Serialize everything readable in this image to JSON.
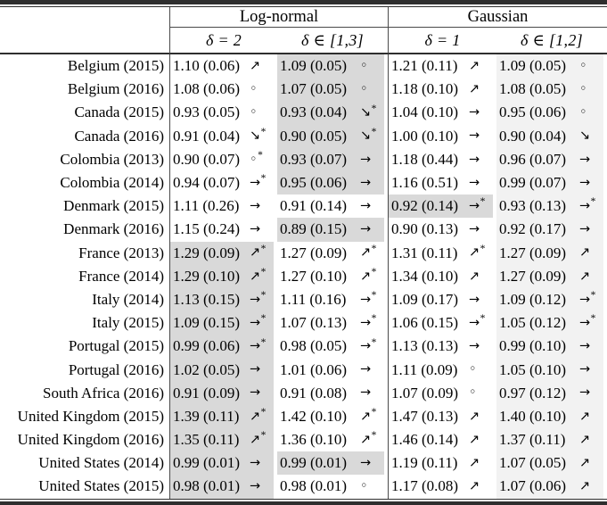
{
  "colors": {
    "highlight_cell": "#d9d9d9",
    "column_tint": "#f2f2f2",
    "rule": "#2e2e2e"
  },
  "table": {
    "star_char": "*",
    "groups": [
      {
        "label": "Log-normal"
      },
      {
        "label": "Gaussian"
      }
    ],
    "subheaders": [
      "δ = 2",
      "δ ∈ [1,3]",
      "δ = 1",
      "δ ∈ [1,2]"
    ],
    "trend_legend": {
      "↗": "increase",
      "→": "stable",
      "↘": "decrease",
      "◦": "none"
    },
    "rows": [
      {
        "label": "Belgium (2015)",
        "cells": [
          {
            "value": "1.10 (0.06)",
            "trend": "↗",
            "star": false,
            "highlight": false
          },
          {
            "value": "1.09 (0.05)",
            "trend": "◦",
            "star": false,
            "highlight": true
          },
          {
            "value": "1.21 (0.11)",
            "trend": "↗",
            "star": false,
            "highlight": false
          },
          {
            "value": "1.09 (0.05)",
            "trend": "◦",
            "star": false,
            "highlight": false
          }
        ]
      },
      {
        "label": "Belgium (2016)",
        "cells": [
          {
            "value": "1.08 (0.06)",
            "trend": "◦",
            "star": false,
            "highlight": false
          },
          {
            "value": "1.07 (0.05)",
            "trend": "◦",
            "star": false,
            "highlight": true
          },
          {
            "value": "1.18 (0.10)",
            "trend": "↗",
            "star": false,
            "highlight": false
          },
          {
            "value": "1.08 (0.05)",
            "trend": "◦",
            "star": false,
            "highlight": false
          }
        ]
      },
      {
        "label": "Canada (2015)",
        "cells": [
          {
            "value": "0.93 (0.05)",
            "trend": "◦",
            "star": false,
            "highlight": false
          },
          {
            "value": "0.93 (0.04)",
            "trend": "↘",
            "star": true,
            "highlight": true
          },
          {
            "value": "1.04 (0.10)",
            "trend": "→",
            "star": false,
            "highlight": false
          },
          {
            "value": "0.95 (0.06)",
            "trend": "◦",
            "star": false,
            "highlight": false
          }
        ]
      },
      {
        "label": "Canada (2016)",
        "cells": [
          {
            "value": "0.91 (0.04)",
            "trend": "↘",
            "star": true,
            "highlight": false
          },
          {
            "value": "0.90 (0.05)",
            "trend": "↘",
            "star": true,
            "highlight": true
          },
          {
            "value": "1.00 (0.10)",
            "trend": "→",
            "star": false,
            "highlight": false
          },
          {
            "value": "0.90 (0.04)",
            "trend": "↘",
            "star": false,
            "highlight": false
          }
        ]
      },
      {
        "label": "Colombia (2013)",
        "cells": [
          {
            "value": "0.90 (0.07)",
            "trend": "◦",
            "star": true,
            "highlight": false
          },
          {
            "value": "0.93 (0.07)",
            "trend": "→",
            "star": false,
            "highlight": true
          },
          {
            "value": "1.18 (0.44)",
            "trend": "→",
            "star": false,
            "highlight": false
          },
          {
            "value": "0.96 (0.07)",
            "trend": "→",
            "star": false,
            "highlight": false
          }
        ]
      },
      {
        "label": "Colombia (2014)",
        "cells": [
          {
            "value": "0.94 (0.07)",
            "trend": "→",
            "star": true,
            "highlight": false
          },
          {
            "value": "0.95 (0.06)",
            "trend": "→",
            "star": false,
            "highlight": true
          },
          {
            "value": "1.16 (0.51)",
            "trend": "→",
            "star": false,
            "highlight": false
          },
          {
            "value": "0.99 (0.07)",
            "trend": "→",
            "star": false,
            "highlight": false
          }
        ]
      },
      {
        "label": "Denmark (2015)",
        "cells": [
          {
            "value": "1.11 (0.26)",
            "trend": "→",
            "star": false,
            "highlight": false
          },
          {
            "value": "0.91 (0.14)",
            "trend": "→",
            "star": false,
            "highlight": false
          },
          {
            "value": "0.92 (0.14)",
            "trend": "→",
            "star": true,
            "highlight": true
          },
          {
            "value": "0.93 (0.13)",
            "trend": "→",
            "star": true,
            "highlight": false
          }
        ]
      },
      {
        "label": "Denmark (2016)",
        "cells": [
          {
            "value": "1.15 (0.24)",
            "trend": "→",
            "star": false,
            "highlight": false
          },
          {
            "value": "0.89 (0.15)",
            "trend": "→",
            "star": false,
            "highlight": true
          },
          {
            "value": "0.90 (0.13)",
            "trend": "→",
            "star": false,
            "highlight": false
          },
          {
            "value": "0.92 (0.17)",
            "trend": "→",
            "star": false,
            "highlight": false
          }
        ]
      },
      {
        "label": "France (2013)",
        "cells": [
          {
            "value": "1.29 (0.09)",
            "trend": "↗",
            "star": true,
            "highlight": true
          },
          {
            "value": "1.27 (0.09)",
            "trend": "↗",
            "star": true,
            "highlight": false
          },
          {
            "value": "1.31 (0.11)",
            "trend": "↗",
            "star": true,
            "highlight": false
          },
          {
            "value": "1.27 (0.09)",
            "trend": "↗",
            "star": false,
            "highlight": false
          }
        ]
      },
      {
        "label": "France (2014)",
        "cells": [
          {
            "value": "1.29 (0.10)",
            "trend": "↗",
            "star": true,
            "highlight": true
          },
          {
            "value": "1.27 (0.10)",
            "trend": "↗",
            "star": true,
            "highlight": false
          },
          {
            "value": "1.34 (0.10)",
            "trend": "↗",
            "star": false,
            "highlight": false
          },
          {
            "value": "1.27 (0.09)",
            "trend": "↗",
            "star": false,
            "highlight": false
          }
        ]
      },
      {
        "label": "Italy (2014)",
        "cells": [
          {
            "value": "1.13 (0.15)",
            "trend": "→",
            "star": true,
            "highlight": true
          },
          {
            "value": "1.11 (0.16)",
            "trend": "→",
            "star": true,
            "highlight": false
          },
          {
            "value": "1.09 (0.17)",
            "trend": "→",
            "star": false,
            "highlight": false
          },
          {
            "value": "1.09 (0.12)",
            "trend": "→",
            "star": true,
            "highlight": false
          }
        ]
      },
      {
        "label": "Italy (2015)",
        "cells": [
          {
            "value": "1.09 (0.15)",
            "trend": "→",
            "star": true,
            "highlight": true
          },
          {
            "value": "1.07 (0.13)",
            "trend": "→",
            "star": true,
            "highlight": false
          },
          {
            "value": "1.06 (0.15)",
            "trend": "→",
            "star": true,
            "highlight": false
          },
          {
            "value": "1.05 (0.12)",
            "trend": "→",
            "star": true,
            "highlight": false
          }
        ]
      },
      {
        "label": "Portugal (2015)",
        "cells": [
          {
            "value": "0.99 (0.06)",
            "trend": "→",
            "star": true,
            "highlight": true
          },
          {
            "value": "0.98 (0.05)",
            "trend": "→",
            "star": true,
            "highlight": false
          },
          {
            "value": "1.13 (0.13)",
            "trend": "→",
            "star": false,
            "highlight": false
          },
          {
            "value": "0.99 (0.10)",
            "trend": "→",
            "star": false,
            "highlight": false
          }
        ]
      },
      {
        "label": "Portugal (2016)",
        "cells": [
          {
            "value": "1.02 (0.05)",
            "trend": "→",
            "star": false,
            "highlight": true
          },
          {
            "value": "1.01 (0.06)",
            "trend": "→",
            "star": false,
            "highlight": false
          },
          {
            "value": "1.11 (0.09)",
            "trend": "◦",
            "star": false,
            "highlight": false
          },
          {
            "value": "1.05 (0.10)",
            "trend": "→",
            "star": false,
            "highlight": false
          }
        ]
      },
      {
        "label": "South Africa (2016)",
        "cells": [
          {
            "value": "0.91 (0.09)",
            "trend": "→",
            "star": false,
            "highlight": true
          },
          {
            "value": "0.91 (0.08)",
            "trend": "→",
            "star": false,
            "highlight": false
          },
          {
            "value": "1.07 (0.09)",
            "trend": "◦",
            "star": false,
            "highlight": false
          },
          {
            "value": "0.97 (0.12)",
            "trend": "→",
            "star": false,
            "highlight": false
          }
        ]
      },
      {
        "label": "United Kingdom (2015)",
        "cells": [
          {
            "value": "1.39 (0.11)",
            "trend": "↗",
            "star": true,
            "highlight": true
          },
          {
            "value": "1.42 (0.10)",
            "trend": "↗",
            "star": true,
            "highlight": false
          },
          {
            "value": "1.47 (0.13)",
            "trend": "↗",
            "star": false,
            "highlight": false
          },
          {
            "value": "1.40 (0.10)",
            "trend": "↗",
            "star": false,
            "highlight": false
          }
        ]
      },
      {
        "label": "United Kingdom (2016)",
        "cells": [
          {
            "value": "1.35 (0.11)",
            "trend": "↗",
            "star": true,
            "highlight": true
          },
          {
            "value": "1.36 (0.10)",
            "trend": "↗",
            "star": true,
            "highlight": false
          },
          {
            "value": "1.46 (0.14)",
            "trend": "↗",
            "star": false,
            "highlight": false
          },
          {
            "value": "1.37 (0.11)",
            "trend": "↗",
            "star": false,
            "highlight": false
          }
        ]
      },
      {
        "label": "United States (2014)",
        "cells": [
          {
            "value": "0.99 (0.01)",
            "trend": "→",
            "star": false,
            "highlight": true
          },
          {
            "value": "0.99 (0.01)",
            "trend": "→",
            "star": false,
            "highlight": true
          },
          {
            "value": "1.19 (0.11)",
            "trend": "↗",
            "star": false,
            "highlight": false
          },
          {
            "value": "1.07 (0.05)",
            "trend": "↗",
            "star": false,
            "highlight": false
          }
        ]
      },
      {
        "label": "United States (2015)",
        "cells": [
          {
            "value": "0.98 (0.01)",
            "trend": "→",
            "star": false,
            "highlight": true
          },
          {
            "value": "0.98 (0.01)",
            "trend": "◦",
            "star": false,
            "highlight": false
          },
          {
            "value": "1.17 (0.08)",
            "trend": "↗",
            "star": false,
            "highlight": false
          },
          {
            "value": "1.07 (0.06)",
            "trend": "↗",
            "star": false,
            "highlight": false
          }
        ]
      }
    ]
  }
}
